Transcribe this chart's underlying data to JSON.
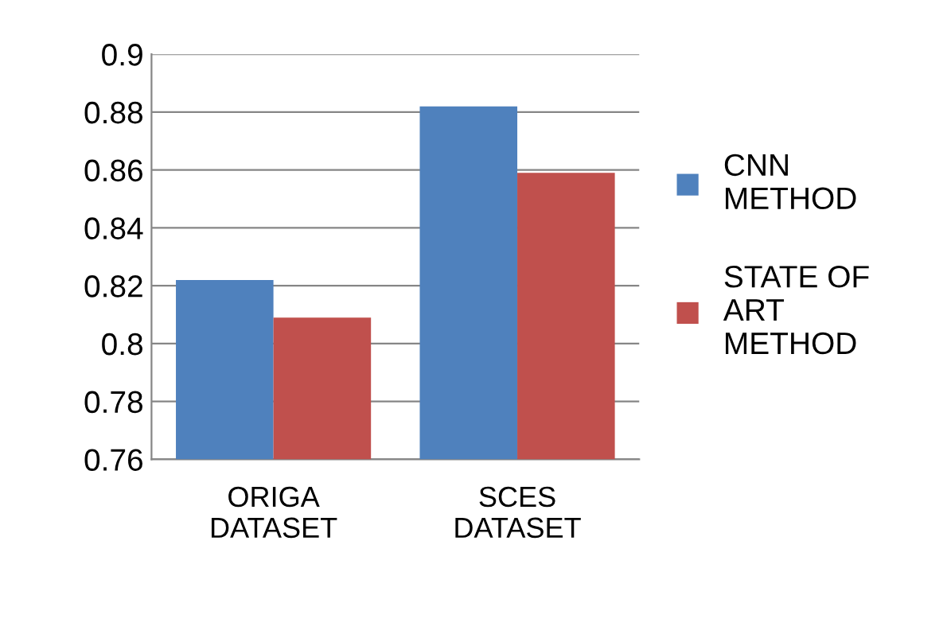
{
  "chart_data": {
    "type": "bar",
    "categories": [
      "ORIGA\nDATASET",
      "SCES\nDATASET"
    ],
    "series": [
      {
        "name": "CNN\nMETHOD",
        "color": "#4f81bd",
        "values": [
          0.822,
          0.882
        ]
      },
      {
        "name": "STATE OF\nART\nMETHOD",
        "color": "#c0504d",
        "values": [
          0.809,
          0.859
        ]
      }
    ],
    "ylim": [
      0.76,
      0.9
    ],
    "yticks": [
      {
        "value": 0.76,
        "label": "0.76"
      },
      {
        "value": 0.78,
        "label": "0.78"
      },
      {
        "value": 0.8,
        "label": "0.8"
      },
      {
        "value": 0.82,
        "label": "0.82"
      },
      {
        "value": 0.84,
        "label": "0.84"
      },
      {
        "value": 0.86,
        "label": "0.86"
      },
      {
        "value": 0.88,
        "label": "0.88"
      },
      {
        "value": 0.9,
        "label": "0.9"
      }
    ],
    "grid": "y",
    "legend": "right"
  }
}
